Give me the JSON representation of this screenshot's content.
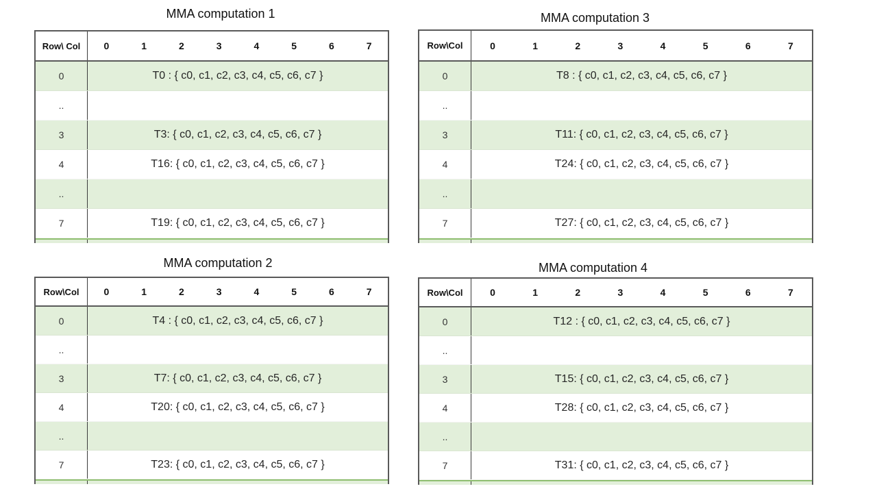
{
  "page": {
    "background": "#ffffff"
  },
  "colors": {
    "band_green": "#e2efda",
    "border_dark": "#595959",
    "divider": "#3a3a3a",
    "sliver_border": "#8fbf70",
    "title_text": "#111111",
    "cell_text": "#262626"
  },
  "tables": [
    {
      "title": "MMA computation 1",
      "corner_label": "Row\\ Col",
      "col_headers": [
        "0",
        "1",
        "2",
        "3",
        "4",
        "5",
        "6",
        "7"
      ],
      "rows": [
        {
          "label": "0",
          "content": "T0 : { c0, c1, c2, c3, c4, c5, c6, c7 }",
          "shaded": true
        },
        {
          "label": "..",
          "content": "",
          "shaded": false
        },
        {
          "label": "3",
          "content": "T3: { c0, c1, c2, c3, c4, c5, c6, c7 }",
          "shaded": true
        },
        {
          "label": "4",
          "content": "T16: { c0, c1, c2, c3, c4, c5, c6, c7 }",
          "shaded": false
        },
        {
          "label": "..",
          "content": "",
          "shaded": true
        },
        {
          "label": "7",
          "content": "T19: { c0, c1, c2, c3, c4, c5, c6, c7 }",
          "shaded": false
        }
      ]
    },
    {
      "title": "MMA computation 2",
      "corner_label": "Row\\Col",
      "col_headers": [
        "0",
        "1",
        "2",
        "3",
        "4",
        "5",
        "6",
        "7"
      ],
      "rows": [
        {
          "label": "0",
          "content": "T4 : { c0, c1, c2, c3, c4, c5, c6, c7 }",
          "shaded": true
        },
        {
          "label": "..",
          "content": "",
          "shaded": false
        },
        {
          "label": "3",
          "content": "T7: { c0, c1, c2, c3, c4, c5, c6, c7 }",
          "shaded": true
        },
        {
          "label": "4",
          "content": "T20: { c0, c1, c2, c3, c4, c5, c6, c7 }",
          "shaded": false
        },
        {
          "label": "..",
          "content": "",
          "shaded": true
        },
        {
          "label": "7",
          "content": "T23: { c0, c1, c2, c3, c4, c5, c6, c7 }",
          "shaded": false
        }
      ]
    },
    {
      "title": "MMA computation 3",
      "corner_label": "Row\\Col",
      "col_headers": [
        "0",
        "1",
        "2",
        "3",
        "4",
        "5",
        "6",
        "7"
      ],
      "rows": [
        {
          "label": "0",
          "content": "T8 : { c0, c1, c2, c3, c4, c5, c6, c7 }",
          "shaded": true
        },
        {
          "label": "..",
          "content": "",
          "shaded": false
        },
        {
          "label": "3",
          "content": "T11: { c0, c1, c2, c3, c4, c5, c6, c7 }",
          "shaded": true
        },
        {
          "label": "4",
          "content": "T24: { c0, c1, c2, c3, c4, c5, c6, c7 }",
          "shaded": false
        },
        {
          "label": "..",
          "content": "",
          "shaded": true
        },
        {
          "label": "7",
          "content": "T27: { c0, c1, c2, c3, c4, c5, c6, c7 }",
          "shaded": false
        }
      ]
    },
    {
      "title": "MMA computation 4",
      "corner_label": "Row\\Col",
      "col_headers": [
        "0",
        "1",
        "2",
        "3",
        "4",
        "5",
        "6",
        "7"
      ],
      "rows": [
        {
          "label": "0",
          "content": "T12 : { c0, c1, c2, c3, c4, c5, c6, c7 }",
          "shaded": true
        },
        {
          "label": "..",
          "content": "",
          "shaded": false
        },
        {
          "label": "3",
          "content": "T15: { c0, c1, c2, c3, c4, c5, c6, c7 }",
          "shaded": true
        },
        {
          "label": "4",
          "content": "T28: { c0, c1, c2, c3, c4, c5, c6, c7 }",
          "shaded": false
        },
        {
          "label": "..",
          "content": "",
          "shaded": true
        },
        {
          "label": "7",
          "content": "T31: { c0, c1, c2, c3, c4, c5, c6, c7 }",
          "shaded": false
        }
      ]
    }
  ]
}
